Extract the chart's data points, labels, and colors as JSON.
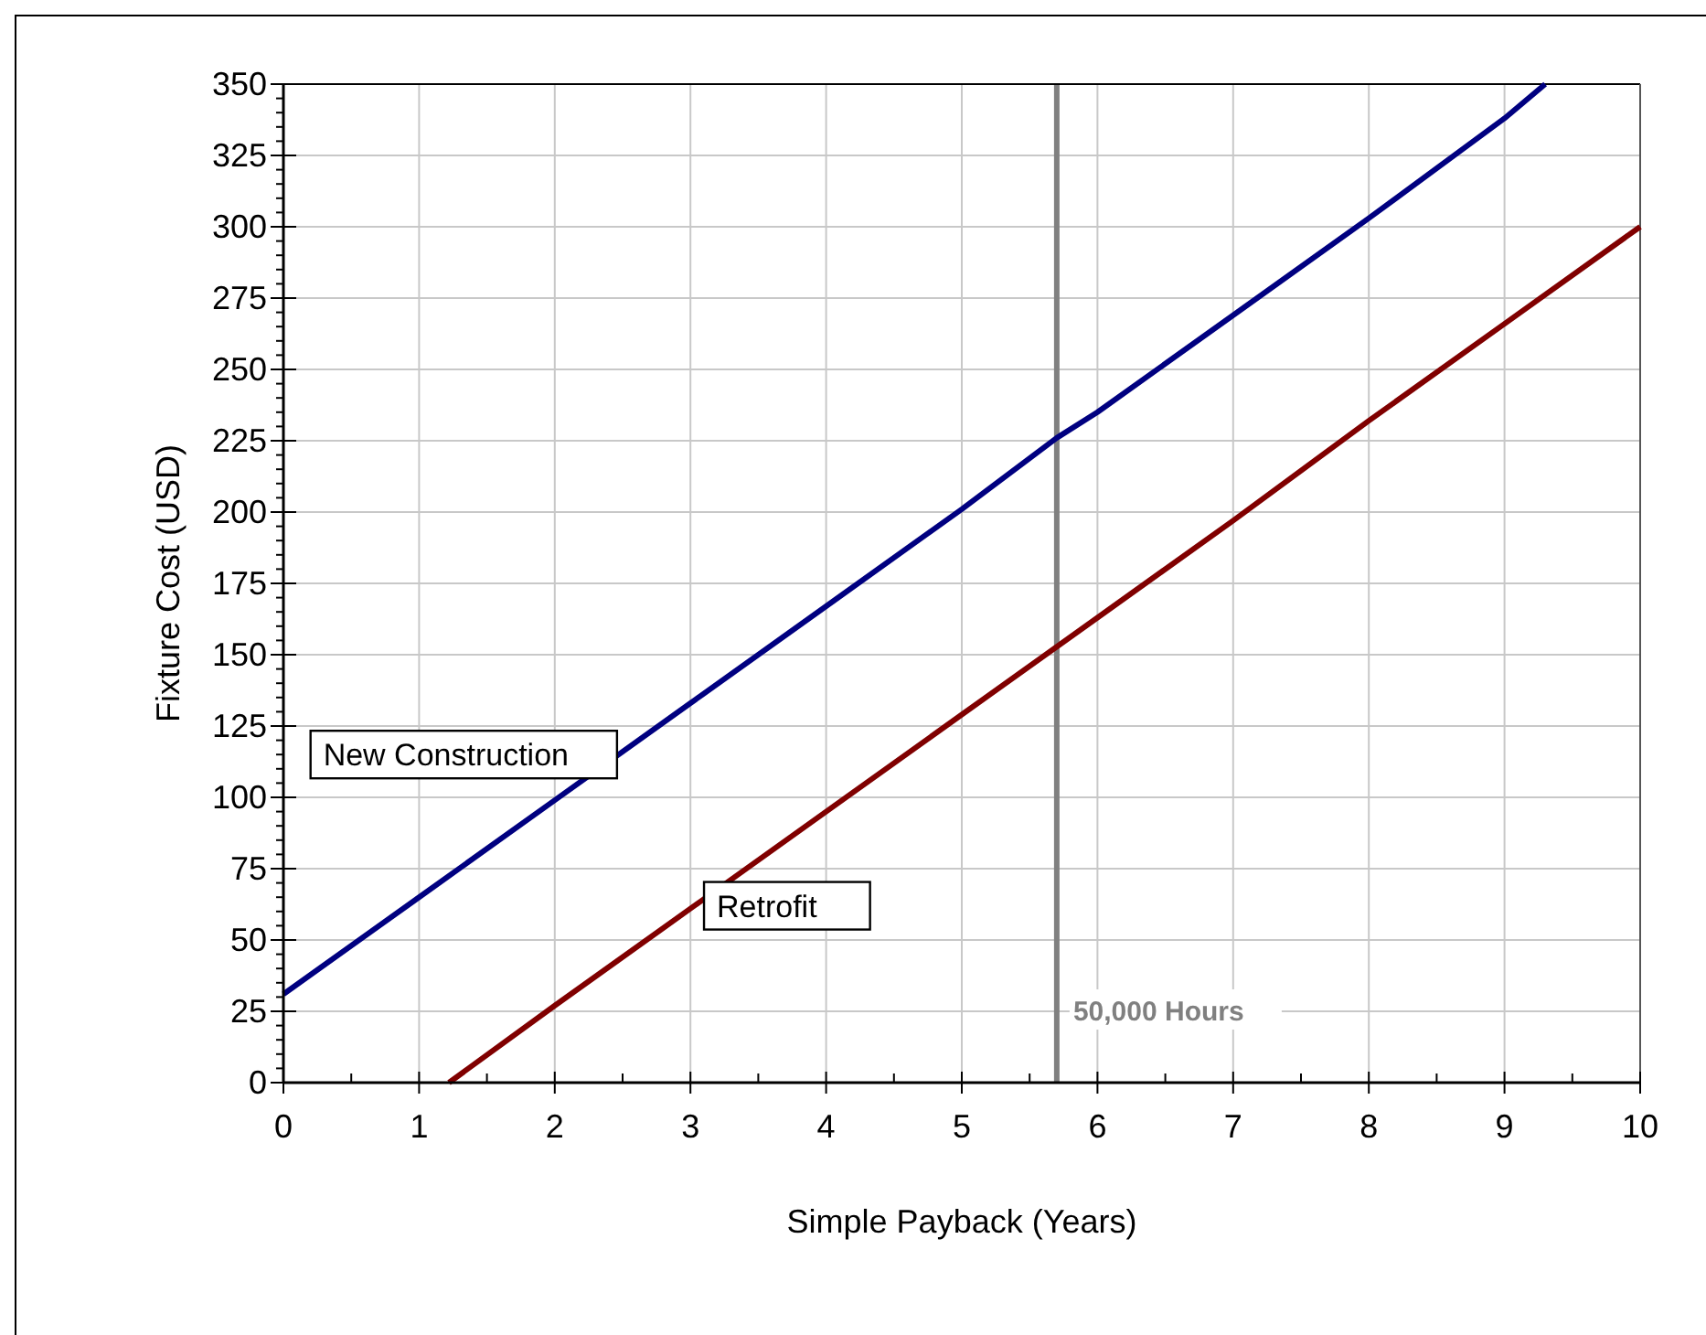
{
  "chart_data": {
    "type": "line",
    "xlabel": "Simple Payback (Years)",
    "ylabel": "Fixture Cost (USD)",
    "xlim": [
      0,
      10
    ],
    "ylim": [
      0,
      350
    ],
    "xticks": [
      0,
      {
        "value": 0.5,
        "label": null
      },
      1,
      {
        "value": 1.5,
        "label": null
      },
      2,
      {
        "value": 2.5,
        "label": null
      },
      3,
      {
        "value": 3.5,
        "label": null
      },
      4,
      {
        "value": 4.5,
        "label": null
      },
      5,
      {
        "value": 5.5,
        "label": null
      },
      6,
      {
        "value": 6.5,
        "label": null
      },
      7,
      {
        "value": 7.5,
        "label": null
      },
      8,
      {
        "value": 8.5,
        "label": null
      },
      9,
      {
        "value": 9.5,
        "label": null
      },
      10
    ],
    "yticks": [
      0,
      {
        "value": 5,
        "label": null
      },
      {
        "value": 10,
        "label": null
      },
      {
        "value": 15,
        "label": null
      },
      {
        "value": 20,
        "label": null
      },
      25,
      {
        "value": 30,
        "label": null
      },
      {
        "value": 35,
        "label": null
      },
      {
        "value": 40,
        "label": null
      },
      {
        "value": 45,
        "label": null
      },
      50,
      {
        "value": 55,
        "label": null
      },
      {
        "value": 60,
        "label": null
      },
      {
        "value": 65,
        "label": null
      },
      {
        "value": 70,
        "label": null
      },
      75,
      {
        "value": 80,
        "label": null
      },
      {
        "value": 85,
        "label": null
      },
      {
        "value": 90,
        "label": null
      },
      {
        "value": 95,
        "label": null
      },
      100,
      {
        "value": 105,
        "label": null
      },
      {
        "value": 110,
        "label": null
      },
      {
        "value": 115,
        "label": null
      },
      {
        "value": 120,
        "label": null
      },
      125,
      {
        "value": 130,
        "label": null
      },
      {
        "value": 135,
        "label": null
      },
      {
        "value": 140,
        "label": null
      },
      {
        "value": 145,
        "label": null
      },
      150,
      {
        "value": 155,
        "label": null
      },
      {
        "value": 160,
        "label": null
      },
      {
        "value": 165,
        "label": null
      },
      {
        "value": 170,
        "label": null
      },
      175,
      {
        "value": 180,
        "label": null
      },
      {
        "value": 185,
        "label": null
      },
      {
        "value": 190,
        "label": null
      },
      {
        "value": 195,
        "label": null
      },
      200,
      {
        "value": 205,
        "label": null
      },
      {
        "value": 210,
        "label": null
      },
      {
        "value": 215,
        "label": null
      },
      {
        "value": 220,
        "label": null
      },
      225,
      {
        "value": 230,
        "label": null
      },
      {
        "value": 235,
        "label": null
      },
      {
        "value": 240,
        "label": null
      },
      {
        "value": 245,
        "label": null
      },
      250,
      {
        "value": 255,
        "label": null
      },
      {
        "value": 260,
        "label": null
      },
      {
        "value": 265,
        "label": null
      },
      {
        "value": 270,
        "label": null
      },
      275,
      {
        "value": 280,
        "label": null
      },
      {
        "value": 285,
        "label": null
      },
      {
        "value": 290,
        "label": null
      },
      {
        "value": 295,
        "label": null
      },
      300,
      {
        "value": 305,
        "label": null
      },
      {
        "value": 310,
        "label": null
      },
      {
        "value": 315,
        "label": null
      },
      {
        "value": 320,
        "label": null
      },
      325,
      {
        "value": 330,
        "label": null
      },
      {
        "value": 335,
        "label": null
      },
      {
        "value": 340,
        "label": null
      },
      {
        "value": 345,
        "label": null
      },
      350
    ],
    "grid": true,
    "marker": "none",
    "line_style": "solid",
    "series": [
      {
        "name": "New Construction",
        "color": "#000080",
        "x": [
          0,
          1,
          2,
          3,
          4,
          5,
          5.7,
          6,
          7,
          8,
          9,
          9.3
        ],
        "values": [
          31,
          65,
          99,
          133,
          167,
          201,
          226,
          235,
          269,
          303,
          338,
          350
        ]
      },
      {
        "name": "Retrofit",
        "color": "#800000",
        "x": [
          1.22,
          2,
          3,
          4,
          5,
          6,
          7,
          8,
          9,
          10
        ],
        "values": [
          0,
          27,
          61,
          95,
          129,
          163,
          197,
          232,
          266,
          300
        ]
      }
    ],
    "ref_lines": [
      {
        "axis": "x",
        "value": 5.7,
        "label": "50,000 Hours",
        "color": "#808080"
      }
    ]
  }
}
